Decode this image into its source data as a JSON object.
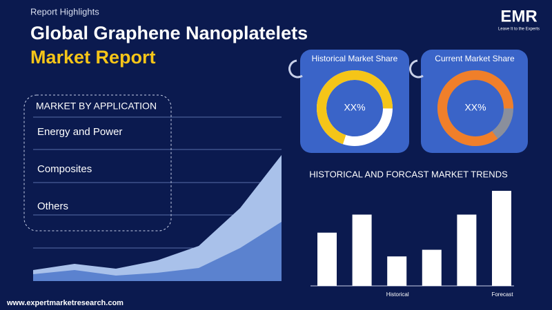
{
  "header": {
    "kicker": "Report Highlights",
    "title_line1": "Global Graphene Nanoplatelets",
    "title_line2": "Market Report"
  },
  "logo": {
    "name": "EMR",
    "tagline": "Leave It to the Experts"
  },
  "application": {
    "title": "MARKET BY APPLICATION",
    "items": [
      "Energy and Power",
      "Composites",
      "Others"
    ]
  },
  "area_chart": {
    "type": "area",
    "series": [
      {
        "color": "#a9c1ea",
        "values": [
          16,
          25,
          18,
          30,
          51,
          106,
          183
        ]
      },
      {
        "color": "#5b82cf",
        "values": [
          10,
          16,
          8,
          12,
          19,
          48,
          86
        ]
      }
    ]
  },
  "historical_share": {
    "title": "Historical Market Share",
    "label": "XX%",
    "value": 70,
    "color": "#f5c518"
  },
  "current_share": {
    "title": "Current Market Share",
    "label": "XX%",
    "value": 85,
    "color": "#f07f2a"
  },
  "trends": {
    "type": "bar",
    "title": "HISTORICAL AND FORCAST MARKET TRENDS",
    "categories": [
      null,
      null,
      "Historical",
      null,
      null,
      "Forecast"
    ],
    "values": [
      56,
      75,
      31,
      38,
      75,
      100
    ],
    "color": "#ffffff"
  },
  "footer": {
    "url": "www.expertmarketresearch.com"
  }
}
